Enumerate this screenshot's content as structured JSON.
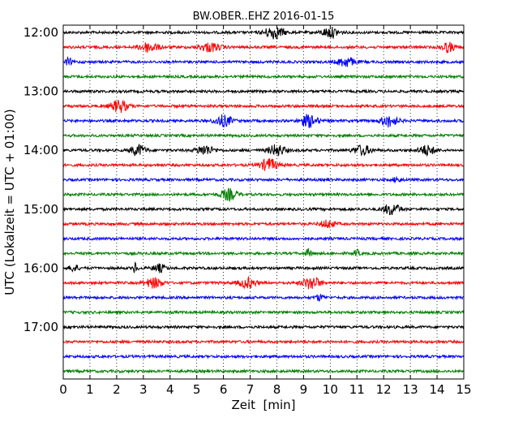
{
  "chart_data": {
    "type": "line",
    "title": "BW.OBER..EHZ 2016-01-15",
    "xlabel": "Zeit  [min]",
    "ylabel": "UTC (Lokalzeit = UTC + 01:00)",
    "xlim": [
      0,
      15
    ],
    "x_ticks": [
      "0",
      "1",
      "2",
      "3",
      "4",
      "5",
      "6",
      "7",
      "8",
      "9",
      "10",
      "11",
      "12",
      "13",
      "14",
      "15"
    ],
    "grid": "vertical dotted",
    "row_interval_min": 15,
    "y_tick_labels": [
      {
        "label": "12:00",
        "row": 0
      },
      {
        "label": "13:00",
        "row": 4
      },
      {
        "label": "14:00",
        "row": 8
      },
      {
        "label": "15:00",
        "row": 12
      },
      {
        "label": "16:00",
        "row": 16
      },
      {
        "label": "17:00",
        "row": 20
      }
    ],
    "colors": [
      "#000000",
      "#ff0000",
      "#0000ff",
      "#008000"
    ],
    "traces": [
      {
        "start": "12:00",
        "color": "#000000",
        "events": [
          [
            7.9,
            0.9,
            1.0
          ],
          [
            10.0,
            0.8,
            0.8
          ]
        ]
      },
      {
        "start": "12:15",
        "color": "#ff0000",
        "events": [
          [
            3.2,
            0.9,
            0.8
          ],
          [
            5.5,
            1.0,
            0.7
          ],
          [
            14.4,
            0.6,
            0.8
          ]
        ]
      },
      {
        "start": "12:30",
        "color": "#0000ff",
        "events": [
          [
            0.2,
            0.3,
            0.6
          ],
          [
            10.6,
            0.8,
            0.8
          ]
        ]
      },
      {
        "start": "12:45",
        "color": "#008000",
        "events": []
      },
      {
        "start": "13:00",
        "color": "#000000",
        "events": []
      },
      {
        "start": "13:15",
        "color": "#ff0000",
        "events": [
          [
            2.1,
            0.8,
            1.0
          ]
        ]
      },
      {
        "start": "13:30",
        "color": "#0000ff",
        "events": [
          [
            6.0,
            0.8,
            0.9
          ],
          [
            9.2,
            0.8,
            1.0
          ],
          [
            12.2,
            0.8,
            0.9
          ]
        ]
      },
      {
        "start": "13:45",
        "color": "#008000",
        "events": []
      },
      {
        "start": "14:00",
        "color": "#000000",
        "events": [
          [
            2.8,
            0.7,
            0.9
          ],
          [
            5.3,
            0.8,
            0.8
          ],
          [
            8.0,
            0.8,
            0.9
          ],
          [
            11.2,
            0.8,
            0.8
          ],
          [
            13.6,
            0.8,
            0.8
          ]
        ]
      },
      {
        "start": "14:15",
        "color": "#ff0000",
        "events": [
          [
            7.7,
            0.8,
            1.0
          ]
        ]
      },
      {
        "start": "14:30",
        "color": "#0000ff",
        "events": [
          [
            12.5,
            0.4,
            0.4
          ]
        ]
      },
      {
        "start": "14:45",
        "color": "#008000",
        "events": [
          [
            6.2,
            0.8,
            0.9
          ]
        ]
      },
      {
        "start": "15:00",
        "color": "#000000",
        "events": [
          [
            12.3,
            0.8,
            0.9
          ]
        ]
      },
      {
        "start": "15:15",
        "color": "#ff0000",
        "events": [
          [
            9.9,
            0.7,
            0.6
          ]
        ]
      },
      {
        "start": "15:30",
        "color": "#0000ff",
        "events": []
      },
      {
        "start": "15:45",
        "color": "#008000",
        "events": [
          [
            9.2,
            0.3,
            0.6
          ],
          [
            11.0,
            0.3,
            0.5
          ]
        ]
      },
      {
        "start": "16:00",
        "color": "#000000",
        "events": [
          [
            0.4,
            0.4,
            0.6
          ],
          [
            2.7,
            0.2,
            0.9
          ],
          [
            3.6,
            0.6,
            0.6
          ]
        ]
      },
      {
        "start": "16:15",
        "color": "#ff0000",
        "events": [
          [
            3.4,
            0.8,
            0.8
          ],
          [
            6.9,
            0.8,
            0.8
          ],
          [
            9.3,
            0.8,
            1.0
          ]
        ]
      },
      {
        "start": "16:30",
        "color": "#0000ff",
        "events": [
          [
            9.6,
            0.4,
            0.5
          ]
        ]
      },
      {
        "start": "16:45",
        "color": "#008000",
        "events": []
      },
      {
        "start": "17:00",
        "color": "#000000",
        "events": []
      },
      {
        "start": "17:15",
        "color": "#ff0000",
        "events": []
      },
      {
        "start": "17:30",
        "color": "#0000ff",
        "events": []
      },
      {
        "start": "17:45",
        "color": "#008000",
        "events": []
      }
    ]
  }
}
